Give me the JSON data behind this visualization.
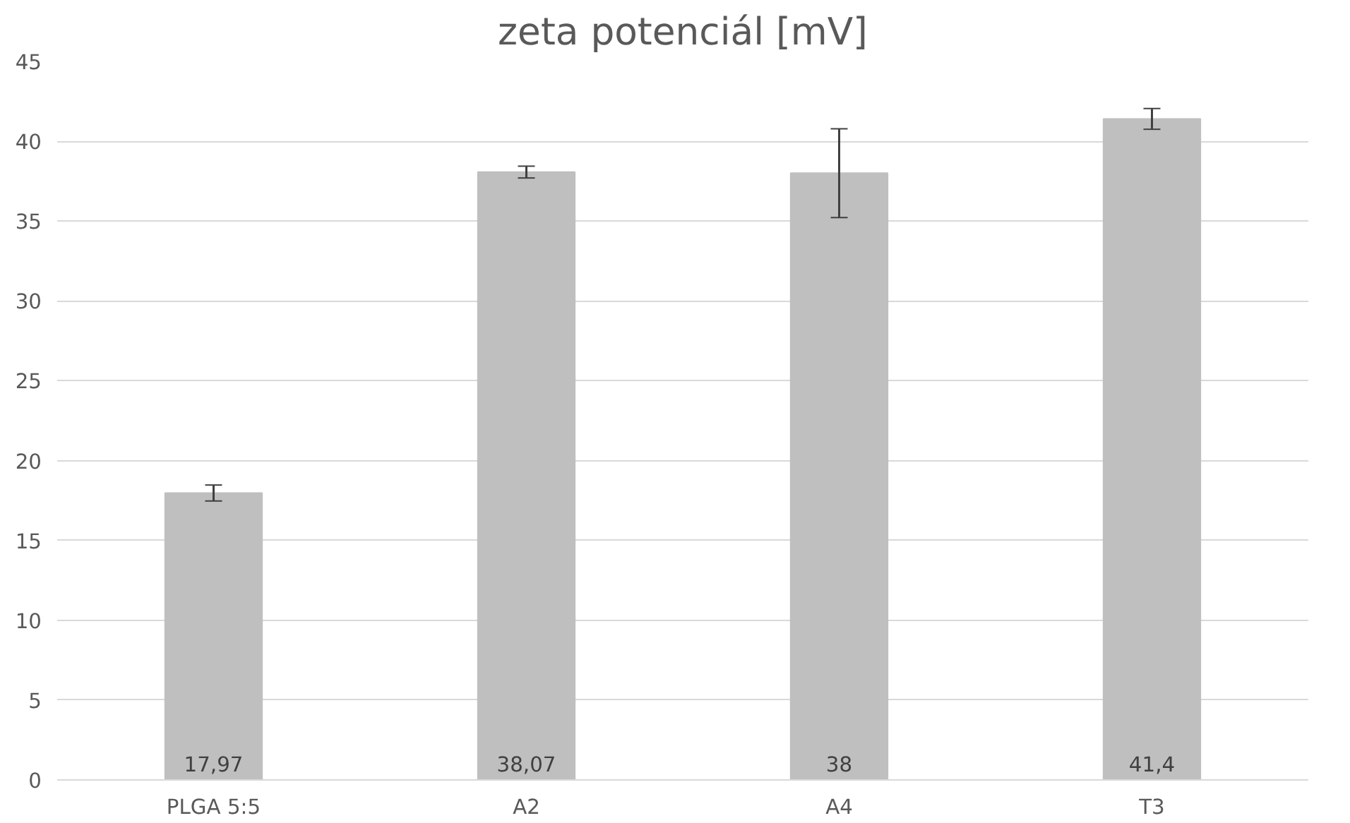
{
  "chart_data": {
    "type": "bar",
    "title": "zeta potenciál [mV]",
    "categories": [
      "PLGA 5:5",
      "A2",
      "A4",
      "T3"
    ],
    "values": [
      17.97,
      38.07,
      38,
      41.4
    ],
    "errors": [
      0.5,
      0.37,
      2.78,
      0.65
    ],
    "value_labels": [
      "17,97",
      "38,07",
      "38",
      "41,4"
    ],
    "color": "#bfbfbf",
    "ylim": [
      0,
      45
    ],
    "yticks": [
      0,
      5,
      10,
      15,
      20,
      25,
      30,
      35,
      40,
      45
    ],
    "grid": "y"
  }
}
